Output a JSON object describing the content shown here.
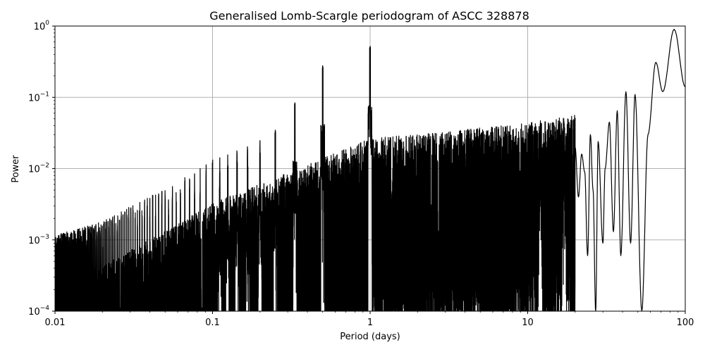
{
  "chart_data": {
    "type": "line",
    "title": "Generalised Lomb-Scargle periodogram of ASCC 328878",
    "xlabel": "Period (days)",
    "ylabel": "Power",
    "xscale": "log",
    "yscale": "log",
    "xlim": [
      0.01,
      100
    ],
    "ylim": [
      0.0001,
      1
    ],
    "grid": true,
    "legend": null,
    "line_color": "#000000",
    "x_ticks": [
      {
        "value": 0.01,
        "label": "0.01"
      },
      {
        "value": 0.1,
        "label": "0.1"
      },
      {
        "value": 1,
        "label": "1"
      },
      {
        "value": 10,
        "label": "10"
      },
      {
        "value": 100,
        "label": "100"
      }
    ],
    "y_ticks": [
      {
        "value": 1,
        "base": "10",
        "exp": "0"
      },
      {
        "value": 0.1,
        "base": "10",
        "exp": "−1"
      },
      {
        "value": 0.01,
        "base": "10",
        "exp": "−2"
      },
      {
        "value": 0.001,
        "base": "10",
        "exp": "−3"
      },
      {
        "value": 0.0001,
        "base": "10",
        "exp": "−4"
      }
    ],
    "notable_peaks": [
      {
        "period": 85.0,
        "power": 0.9
      },
      {
        "period": 65.0,
        "power": 0.31
      },
      {
        "period": 48.0,
        "power": 0.11
      },
      {
        "period": 42.0,
        "power": 0.12
      },
      {
        "period": 37.0,
        "power": 0.065
      },
      {
        "period": 33.0,
        "power": 0.045
      },
      {
        "period": 28.0,
        "power": 0.024
      },
      {
        "period": 25.0,
        "power": 0.03
      },
      {
        "period": 17.0,
        "power": 0.034
      },
      {
        "period": 12.0,
        "power": 0.035
      },
      {
        "period": 1.0,
        "power": 0.52
      },
      {
        "period": 0.997,
        "power": 0.5
      },
      {
        "period": 0.5,
        "power": 0.28
      },
      {
        "period": 0.333,
        "power": 0.085
      },
      {
        "period": 0.25,
        "power": 0.035
      },
      {
        "period": 0.2,
        "power": 0.017
      },
      {
        "period": 0.167,
        "power": 0.011
      },
      {
        "period": 0.143,
        "power": 0.0125
      },
      {
        "period": 0.125,
        "power": 0.011
      },
      {
        "period": 0.111,
        "power": 0.0055
      }
    ],
    "noise_floor_envelope": [
      {
        "period": 0.01,
        "power": 0.00013
      },
      {
        "period": 0.02,
        "power": 0.0002
      },
      {
        "period": 0.05,
        "power": 0.0006
      },
      {
        "period": 0.1,
        "power": 0.0015
      },
      {
        "period": 0.3,
        "power": 0.004
      },
      {
        "period": 1.0,
        "power": 0.012
      },
      {
        "period": 3.0,
        "power": 0.015
      },
      {
        "period": 10.0,
        "power": 0.02
      },
      {
        "period": 30.0,
        "power": 0.03
      }
    ],
    "long_period_curve": [
      [
        20,
        0.02
      ],
      [
        21,
        0.004
      ],
      [
        22,
        0.016
      ],
      [
        23,
        0.009
      ],
      [
        24,
        0.0006
      ],
      [
        25,
        0.03
      ],
      [
        26,
        0.005
      ],
      [
        27,
        0.0001
      ],
      [
        28,
        0.024
      ],
      [
        30,
        0.0009
      ],
      [
        31,
        0.01
      ],
      [
        33,
        0.045
      ],
      [
        35,
        0.0013
      ],
      [
        37,
        0.065
      ],
      [
        39,
        0.0006
      ],
      [
        42,
        0.12
      ],
      [
        45,
        0.0009
      ],
      [
        48,
        0.11
      ],
      [
        53,
        0.0001
      ],
      [
        58,
        0.03
      ],
      [
        65,
        0.31
      ],
      [
        72,
        0.12
      ],
      [
        85,
        0.9
      ],
      [
        100,
        0.14
      ]
    ]
  }
}
